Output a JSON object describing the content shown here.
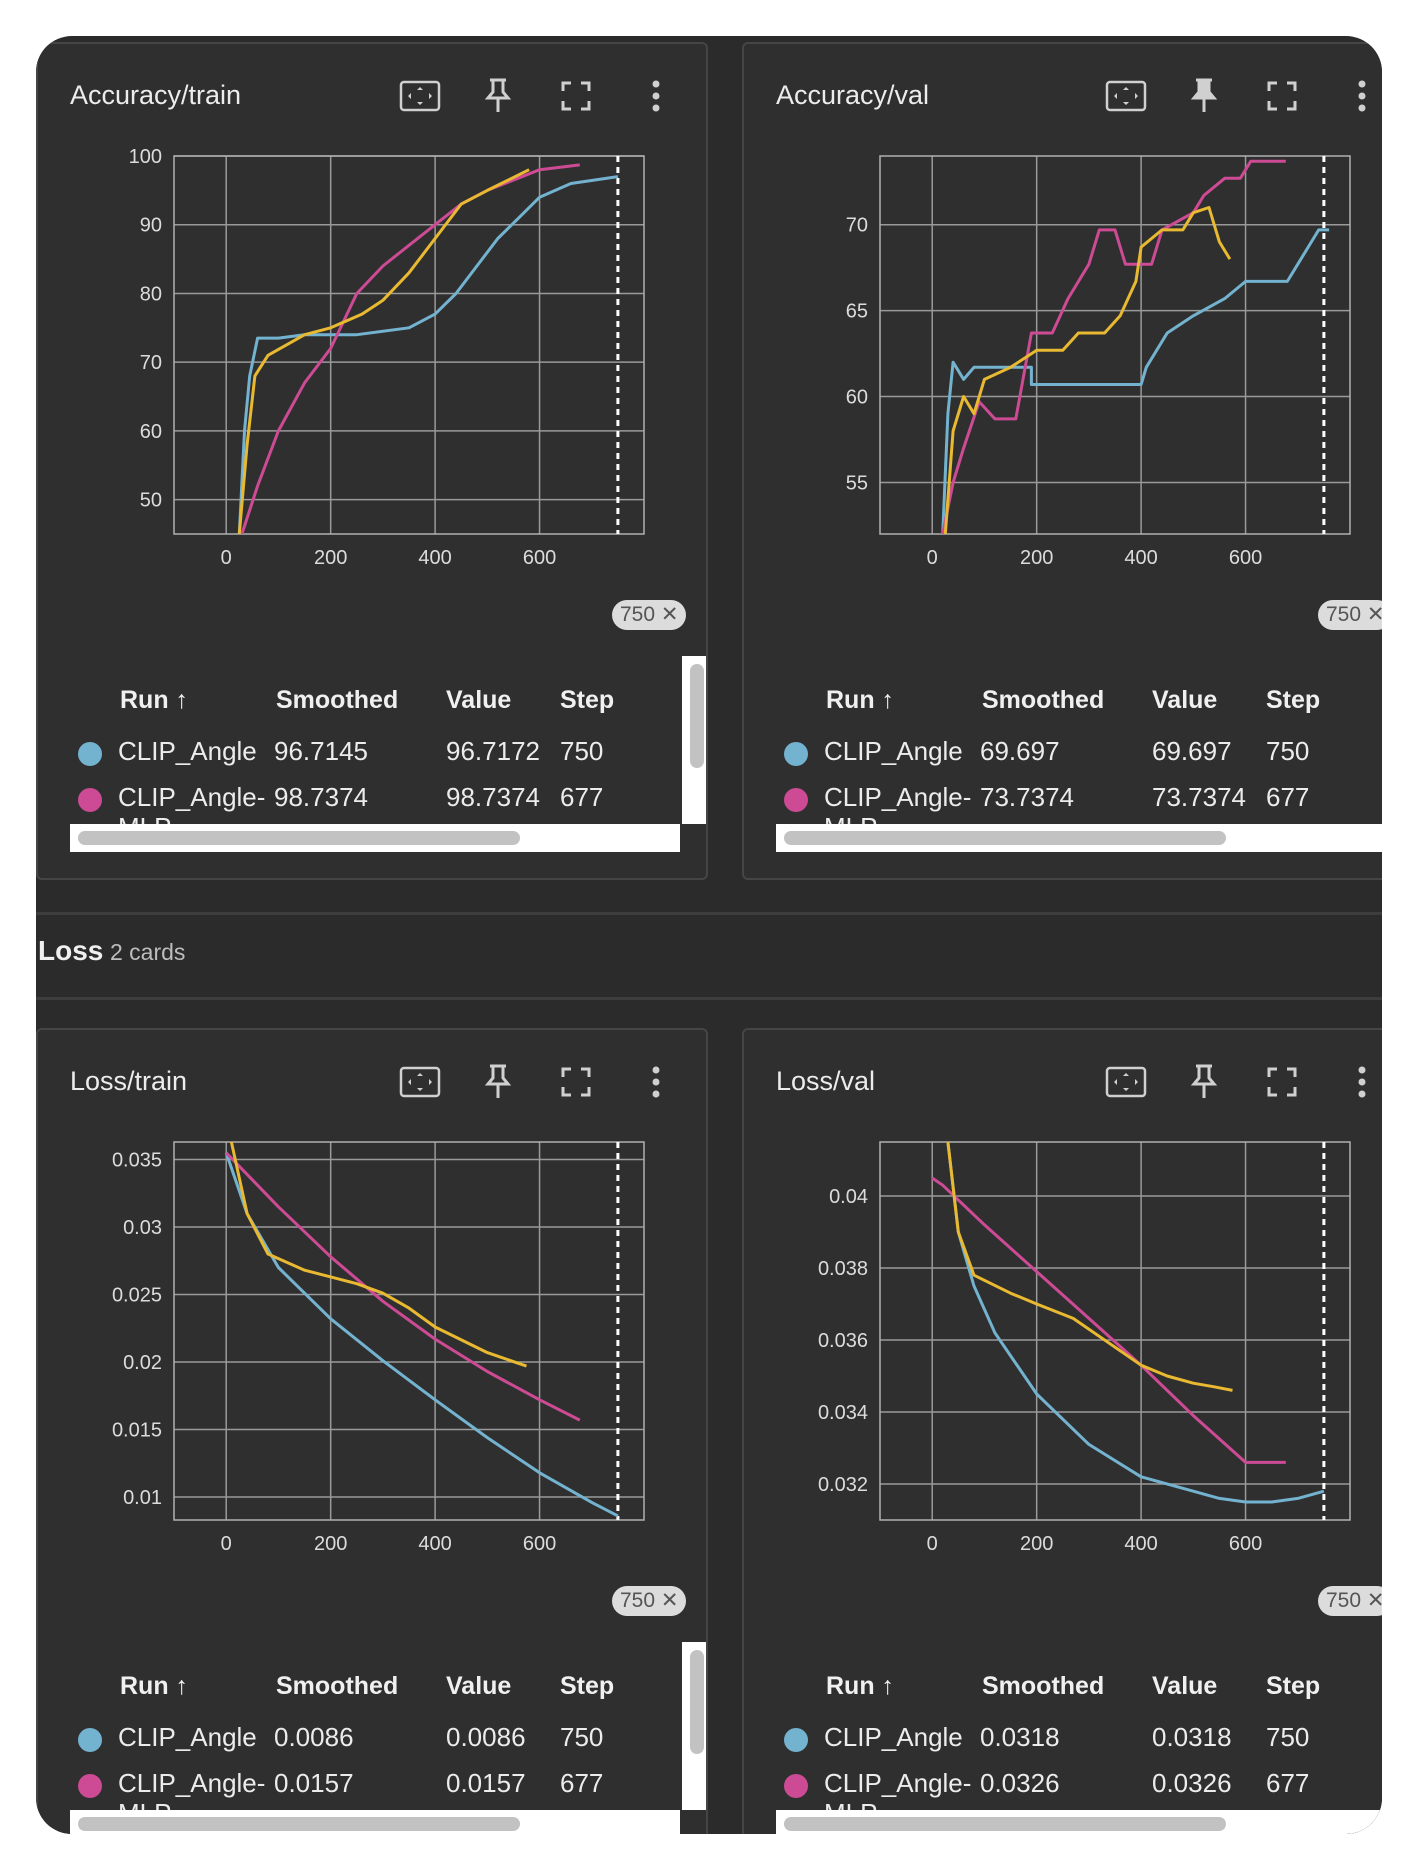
{
  "section": {
    "title": "Loss",
    "count": "2 cards"
  },
  "table_headers": {
    "run": "Run ↑",
    "smoothed": "Smoothed",
    "value": "Value",
    "step": "Step"
  },
  "colors": {
    "clip_angle": "#73b3d0",
    "clip_angle_mlp": "#cc4b94",
    "third_run": "#e8b931"
  },
  "icons": [
    "fit-to-data-icon",
    "pin-icon",
    "fullscreen-icon",
    "more-vert-icon"
  ],
  "cards": [
    {
      "title": "Accuracy/train",
      "step_badge": "750",
      "rows": [
        {
          "run": "CLIP_Angle",
          "smoothed": "96.7145",
          "value": "96.7172",
          "step": "750"
        },
        {
          "run_line1": "CLIP_Angle-",
          "run_line2": "MLP",
          "smoothed": "98.7374",
          "value": "98.7374",
          "step": "677"
        }
      ]
    },
    {
      "title": "Accuracy/val",
      "step_badge": "750",
      "rows": [
        {
          "run": "CLIP_Angle",
          "smoothed": "69.697",
          "value": "69.697",
          "step": "750"
        },
        {
          "run_line1": "CLIP_Angle-",
          "run_line2": "MLP",
          "smoothed": "73.7374",
          "value": "73.7374",
          "step": "677"
        }
      ]
    },
    {
      "title": "Loss/train",
      "step_badge": "750",
      "rows": [
        {
          "run": "CLIP_Angle",
          "smoothed": "0.0086",
          "value": "0.0086",
          "step": "750"
        },
        {
          "run_line1": "CLIP_Angle-",
          "run_line2": "MLP",
          "smoothed": "0.0157",
          "value": "0.0157",
          "step": "677"
        }
      ]
    },
    {
      "title": "Loss/val",
      "step_badge": "750",
      "rows": [
        {
          "run": "CLIP_Angle",
          "smoothed": "0.0318",
          "value": "0.0318",
          "step": "750"
        },
        {
          "run_line1": "CLIP_Angle-",
          "run_line2": "MLP",
          "smoothed": "0.0326",
          "value": "0.0326",
          "step": "677"
        }
      ]
    }
  ],
  "chart_data": [
    {
      "type": "line",
      "title": "Accuracy/train",
      "xlim": [
        -100,
        800
      ],
      "ylim": [
        45,
        100
      ],
      "xticks": [
        "0",
        "200",
        "400",
        "600"
      ],
      "xtick_values": [
        0,
        200,
        400,
        600
      ],
      "yticks": [
        "50",
        "60",
        "70",
        "80",
        "90",
        "100"
      ],
      "ytick_values": [
        50,
        60,
        70,
        80,
        90,
        100
      ],
      "grid": true,
      "step_marker": 750,
      "series": [
        {
          "name": "CLIP_Angle",
          "color": "#73b3d0",
          "points": [
            [
              25,
              45
            ],
            [
              35,
              60
            ],
            [
              45,
              68
            ],
            [
              60,
              73.5
            ],
            [
              100,
              73.5
            ],
            [
              150,
              74
            ],
            [
              250,
              74
            ],
            [
              350,
              75
            ],
            [
              400,
              77
            ],
            [
              440,
              80
            ],
            [
              480,
              84
            ],
            [
              520,
              88
            ],
            [
              560,
              91
            ],
            [
              600,
              94
            ],
            [
              660,
              96
            ],
            [
              750,
              97
            ]
          ]
        },
        {
          "name": "CLIP_Angle-MLP",
          "color": "#cc4b94",
          "points": [
            [
              30,
              45
            ],
            [
              60,
              52
            ],
            [
              100,
              60
            ],
            [
              150,
              67
            ],
            [
              200,
              72
            ],
            [
              250,
              80
            ],
            [
              300,
              84
            ],
            [
              350,
              87
            ],
            [
              400,
              90
            ],
            [
              450,
              93
            ],
            [
              500,
              95
            ],
            [
              550,
              96.5
            ],
            [
              600,
              98
            ],
            [
              677,
              98.7
            ]
          ]
        },
        {
          "color": "#e8b931",
          "points": [
            [
              25,
              45
            ],
            [
              40,
              58
            ],
            [
              55,
              68
            ],
            [
              80,
              71
            ],
            [
              150,
              74
            ],
            [
              200,
              75
            ],
            [
              260,
              77
            ],
            [
              300,
              79
            ],
            [
              350,
              83
            ],
            [
              400,
              88
            ],
            [
              450,
              93
            ],
            [
              500,
              95
            ],
            [
              580,
              98
            ]
          ]
        }
      ]
    },
    {
      "type": "line",
      "title": "Accuracy/val",
      "xlim": [
        -100,
        800
      ],
      "ylim": [
        52,
        74
      ],
      "xticks": [
        "0",
        "200",
        "400",
        "600"
      ],
      "xtick_values": [
        0,
        200,
        400,
        600
      ],
      "yticks": [
        "55",
        "60",
        "65",
        "70"
      ],
      "ytick_values": [
        55,
        60,
        65,
        70
      ],
      "grid": true,
      "step_marker": 750,
      "series": [
        {
          "name": "CLIP_Angle",
          "color": "#73b3d0",
          "points": [
            [
              20,
              52
            ],
            [
              30,
              59
            ],
            [
              40,
              62
            ],
            [
              60,
              61
            ],
            [
              80,
              61.7
            ],
            [
              130,
              61.7
            ],
            [
              190,
              61.7
            ],
            [
              190,
              60.7
            ],
            [
              400,
              60.7
            ],
            [
              410,
              61.7
            ],
            [
              450,
              63.7
            ],
            [
              500,
              64.7
            ],
            [
              560,
              65.7
            ],
            [
              600,
              66.7
            ],
            [
              680,
              66.7
            ],
            [
              700,
              67.7
            ],
            [
              720,
              68.7
            ],
            [
              740,
              69.7
            ],
            [
              760,
              69.7
            ]
          ]
        },
        {
          "name": "CLIP_Angle-MLP",
          "color": "#cc4b94",
          "points": [
            [
              20,
              52
            ],
            [
              40,
              55
            ],
            [
              60,
              57
            ],
            [
              90,
              59.7
            ],
            [
              120,
              58.7
            ],
            [
              160,
              58.7
            ],
            [
              190,
              63.7
            ],
            [
              230,
              63.7
            ],
            [
              260,
              65.7
            ],
            [
              300,
              67.7
            ],
            [
              320,
              69.7
            ],
            [
              350,
              69.7
            ],
            [
              370,
              67.7
            ],
            [
              420,
              67.7
            ],
            [
              440,
              69.7
            ],
            [
              500,
              70.7
            ],
            [
              520,
              71.7
            ],
            [
              560,
              72.7
            ],
            [
              590,
              72.7
            ],
            [
              610,
              73.7
            ],
            [
              677,
              73.7
            ]
          ]
        },
        {
          "color": "#e8b931",
          "points": [
            [
              25,
              52
            ],
            [
              40,
              58
            ],
            [
              60,
              60
            ],
            [
              80,
              59
            ],
            [
              100,
              61
            ],
            [
              150,
              61.7
            ],
            [
              200,
              62.7
            ],
            [
              250,
              62.7
            ],
            [
              280,
              63.7
            ],
            [
              330,
              63.7
            ],
            [
              360,
              64.7
            ],
            [
              390,
              66.7
            ],
            [
              400,
              68.7
            ],
            [
              440,
              69.7
            ],
            [
              480,
              69.7
            ],
            [
              500,
              70.7
            ],
            [
              530,
              71
            ],
            [
              550,
              69
            ],
            [
              570,
              68
            ]
          ]
        }
      ]
    },
    {
      "type": "line",
      "title": "Loss/train",
      "xlim": [
        -100,
        800
      ],
      "ylim": [
        0.0083,
        0.0363
      ],
      "xticks": [
        "0",
        "200",
        "400",
        "600"
      ],
      "xtick_values": [
        0,
        200,
        400,
        600
      ],
      "yticks": [
        "0.01",
        "0.015",
        "0.02",
        "0.025",
        "0.03",
        "0.035"
      ],
      "ytick_values": [
        0.01,
        0.015,
        0.02,
        0.025,
        0.03,
        0.035
      ],
      "grid": true,
      "step_marker": 750,
      "series": [
        {
          "name": "CLIP_Angle",
          "color": "#73b3d0",
          "points": [
            [
              0,
              0.0355
            ],
            [
              40,
              0.031
            ],
            [
              100,
              0.027
            ],
            [
              200,
              0.0232
            ],
            [
              300,
              0.0201
            ],
            [
              400,
              0.0172
            ],
            [
              500,
              0.0144
            ],
            [
              600,
              0.0118
            ],
            [
              700,
              0.0096
            ],
            [
              750,
              0.0086
            ]
          ]
        },
        {
          "name": "CLIP_Angle-MLP",
          "color": "#cc4b94",
          "points": [
            [
              0,
              0.0355
            ],
            [
              100,
              0.0315
            ],
            [
              200,
              0.0278
            ],
            [
              300,
              0.0245
            ],
            [
              400,
              0.0217
            ],
            [
              500,
              0.0193
            ],
            [
              600,
              0.0172
            ],
            [
              677,
              0.0157
            ]
          ]
        },
        {
          "color": "#e8b931",
          "points": [
            [
              10,
              0.0363
            ],
            [
              40,
              0.031
            ],
            [
              80,
              0.028
            ],
            [
              150,
              0.0268
            ],
            [
              250,
              0.0258
            ],
            [
              300,
              0.0251
            ],
            [
              350,
              0.024
            ],
            [
              400,
              0.0226
            ],
            [
              500,
              0.0207
            ],
            [
              575,
              0.0197
            ]
          ]
        }
      ]
    },
    {
      "type": "line",
      "title": "Loss/val",
      "xlim": [
        -100,
        800
      ],
      "ylim": [
        0.031,
        0.0415
      ],
      "xticks": [
        "0",
        "200",
        "400",
        "600"
      ],
      "xtick_values": [
        0,
        200,
        400,
        600
      ],
      "yticks": [
        "0.032",
        "0.034",
        "0.036",
        "0.038",
        "0.04"
      ],
      "ytick_values": [
        0.032,
        0.034,
        0.036,
        0.038,
        0.04
      ],
      "grid": true,
      "step_marker": 750,
      "series": [
        {
          "name": "CLIP_Angle",
          "color": "#73b3d0",
          "points": [
            [
              30,
              0.0415
            ],
            [
              50,
              0.039
            ],
            [
              80,
              0.0375
            ],
            [
              120,
              0.0362
            ],
            [
              200,
              0.0345
            ],
            [
              300,
              0.0331
            ],
            [
              400,
              0.0322
            ],
            [
              500,
              0.0318
            ],
            [
              550,
              0.0316
            ],
            [
              600,
              0.0315
            ],
            [
              650,
              0.0315
            ],
            [
              700,
              0.0316
            ],
            [
              750,
              0.0318
            ]
          ]
        },
        {
          "name": "CLIP_Angle-MLP",
          "color": "#cc4b94",
          "points": [
            [
              0,
              0.0405
            ],
            [
              20,
              0.0403
            ],
            [
              100,
              0.0392
            ],
            [
              200,
              0.0379
            ],
            [
              300,
              0.0366
            ],
            [
              400,
              0.0353
            ],
            [
              500,
              0.0339
            ],
            [
              600,
              0.0326
            ],
            [
              677,
              0.0326
            ]
          ]
        },
        {
          "color": "#e8b931",
          "points": [
            [
              30,
              0.0415
            ],
            [
              50,
              0.039
            ],
            [
              80,
              0.0378
            ],
            [
              150,
              0.0373
            ],
            [
              200,
              0.037
            ],
            [
              270,
              0.0366
            ],
            [
              350,
              0.0358
            ],
            [
              400,
              0.0353
            ],
            [
              450,
              0.035
            ],
            [
              500,
              0.0348
            ],
            [
              540,
              0.0347
            ],
            [
              575,
              0.0346
            ]
          ]
        }
      ]
    }
  ]
}
